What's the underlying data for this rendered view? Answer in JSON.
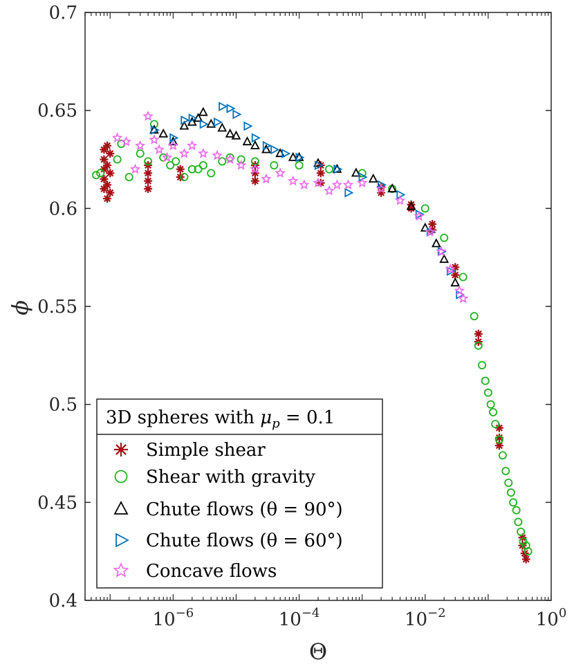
{
  "chart_data": {
    "type": "scatter",
    "xlabel": "Θ",
    "ylabel": "ϕ",
    "x_scale": "log",
    "xlim": [
      4e-08,
      1
    ],
    "ylim": [
      0.4,
      0.7
    ],
    "grid": false,
    "legend_position": "bottom-left",
    "x_ticks": [
      {
        "value": 1e-06,
        "base": "10",
        "exp": "−6"
      },
      {
        "value": 0.0001,
        "base": "10",
        "exp": "−4"
      },
      {
        "value": 0.01,
        "base": "10",
        "exp": "−2"
      },
      {
        "value": 1,
        "base": "10",
        "exp": "0"
      }
    ],
    "y_ticks": [
      "0.4",
      "0.45",
      "0.5",
      "0.55",
      "0.6",
      "0.65",
      "0.7"
    ],
    "legend": {
      "title": "3D spheres with μ_p = 0.1",
      "title_prefix": "3D spheres with ",
      "title_symbol": "μ",
      "title_sub": "p",
      "title_suffix": " = 0.1"
    },
    "series": [
      {
        "name": "Simple shear",
        "marker": "asterisk",
        "color": "#a50f15",
        "points": [
          [
            8e-08,
            0.63
          ],
          [
            8e-08,
            0.625
          ],
          [
            8e-08,
            0.62
          ],
          [
            8e-08,
            0.615
          ],
          [
            8e-08,
            0.61
          ],
          [
            9e-08,
            0.632
          ],
          [
            9e-08,
            0.622
          ],
          [
            9e-08,
            0.612
          ],
          [
            9e-08,
            0.605
          ],
          [
            1e-07,
            0.628
          ],
          [
            1e-07,
            0.618
          ],
          [
            1e-07,
            0.608
          ],
          [
            4e-07,
            0.622
          ],
          [
            4e-07,
            0.618
          ],
          [
            4e-07,
            0.614
          ],
          [
            4e-07,
            0.61
          ],
          [
            1.3e-06,
            0.62
          ],
          [
            1.3e-06,
            0.616
          ],
          [
            2e-05,
            0.622
          ],
          [
            2e-05,
            0.618
          ],
          [
            2e-05,
            0.614
          ],
          [
            0.00022,
            0.622
          ],
          [
            0.00022,
            0.618
          ],
          [
            0.00022,
            0.613
          ],
          [
            0.002,
            0.611
          ],
          [
            0.002,
            0.608
          ],
          [
            0.006,
            0.602
          ],
          [
            0.006,
            0.6
          ],
          [
            0.013,
            0.592
          ],
          [
            0.013,
            0.589
          ],
          [
            0.03,
            0.57
          ],
          [
            0.03,
            0.566
          ],
          [
            0.07,
            0.536
          ],
          [
            0.07,
            0.532
          ],
          [
            0.15,
            0.488
          ],
          [
            0.15,
            0.483
          ],
          [
            0.15,
            0.479
          ],
          [
            0.35,
            0.432
          ],
          [
            0.35,
            0.428
          ],
          [
            0.38,
            0.424
          ],
          [
            0.4,
            0.421
          ]
        ]
      },
      {
        "name": "Shear with gravity",
        "marker": "circle",
        "color": "#1fb31f",
        "points": [
          [
            6e-08,
            0.617
          ],
          [
            7e-08,
            0.618
          ],
          [
            1.3e-07,
            0.625
          ],
          [
            1.5e-07,
            0.633
          ],
          [
            2e-07,
            0.616
          ],
          [
            3e-07,
            0.628
          ],
          [
            4e-07,
            0.624
          ],
          [
            5e-07,
            0.643
          ],
          [
            7e-07,
            0.626
          ],
          [
            9e-07,
            0.622
          ],
          [
            1.1e-06,
            0.624
          ],
          [
            1.5e-06,
            0.616
          ],
          [
            2e-06,
            0.62
          ],
          [
            2.5e-06,
            0.62
          ],
          [
            3e-06,
            0.622
          ],
          [
            4e-06,
            0.618
          ],
          [
            6e-06,
            0.624
          ],
          [
            8e-06,
            0.626
          ],
          [
            1.2e-05,
            0.625
          ],
          [
            2e-05,
            0.624
          ],
          [
            4e-05,
            0.622
          ],
          [
            0.0001,
            0.622
          ],
          [
            0.0003,
            0.62
          ],
          [
            0.001,
            0.618
          ],
          [
            0.003,
            0.61
          ],
          [
            0.01,
            0.6
          ],
          [
            0.02,
            0.585
          ],
          [
            0.04,
            0.565
          ],
          [
            0.06,
            0.545
          ],
          [
            0.07,
            0.53
          ],
          [
            0.08,
            0.52
          ],
          [
            0.09,
            0.512
          ],
          [
            0.1,
            0.506
          ],
          [
            0.11,
            0.5
          ],
          [
            0.12,
            0.496
          ],
          [
            0.13,
            0.49
          ],
          [
            0.15,
            0.482
          ],
          [
            0.17,
            0.474
          ],
          [
            0.19,
            0.466
          ],
          [
            0.21,
            0.46
          ],
          [
            0.23,
            0.455
          ],
          [
            0.25,
            0.45
          ],
          [
            0.28,
            0.446
          ],
          [
            0.3,
            0.44
          ],
          [
            0.33,
            0.435
          ],
          [
            0.36,
            0.43
          ],
          [
            0.4,
            0.428
          ],
          [
            0.43,
            0.425
          ]
        ]
      },
      {
        "name": "Chute flows (θ = 90°)",
        "marker": "triangle-up",
        "color": "#000000",
        "points": [
          [
            5e-07,
            0.64
          ],
          [
            7e-07,
            0.638
          ],
          [
            1e-06,
            0.634
          ],
          [
            1.5e-06,
            0.642
          ],
          [
            2e-06,
            0.644
          ],
          [
            2.5e-06,
            0.646
          ],
          [
            3e-06,
            0.649
          ],
          [
            4e-06,
            0.643
          ],
          [
            6e-06,
            0.641
          ],
          [
            8e-06,
            0.638
          ],
          [
            1e-05,
            0.637
          ],
          [
            1.5e-05,
            0.634
          ],
          [
            2e-05,
            0.632
          ],
          [
            3e-05,
            0.63
          ],
          [
            5e-05,
            0.628
          ],
          [
            8e-05,
            0.626
          ],
          [
            0.0001,
            0.626
          ],
          [
            0.0002,
            0.623
          ],
          [
            0.0004,
            0.62
          ],
          [
            0.0008,
            0.618
          ],
          [
            0.0015,
            0.615
          ],
          [
            0.003,
            0.61
          ],
          [
            0.006,
            0.601
          ],
          [
            0.01,
            0.59
          ],
          [
            0.015,
            0.582
          ],
          [
            0.02,
            0.574
          ],
          [
            0.03,
            0.562
          ]
        ]
      },
      {
        "name": "Chute flows (θ = 60°)",
        "marker": "triangle-right",
        "color": "#0072bd",
        "points": [
          [
            5e-07,
            0.64
          ],
          [
            1e-06,
            0.636
          ],
          [
            1.5e-06,
            0.645
          ],
          [
            2e-06,
            0.646
          ],
          [
            3e-06,
            0.643
          ],
          [
            5e-06,
            0.644
          ],
          [
            6e-06,
            0.652
          ],
          [
            8e-06,
            0.651
          ],
          [
            1e-05,
            0.648
          ],
          [
            1.5e-05,
            0.642
          ],
          [
            2e-05,
            0.636
          ],
          [
            3e-05,
            0.632
          ],
          [
            4e-05,
            0.63
          ],
          [
            6e-05,
            0.628
          ],
          [
            0.0001,
            0.626
          ],
          [
            0.0002,
            0.622
          ],
          [
            0.0004,
            0.62
          ],
          [
            0.0006,
            0.608
          ],
          [
            0.001,
            0.616
          ],
          [
            0.002,
            0.612
          ],
          [
            0.004,
            0.607
          ],
          [
            0.008,
            0.597
          ],
          [
            0.012,
            0.588
          ],
          [
            0.018,
            0.578
          ],
          [
            0.025,
            0.568
          ],
          [
            0.035,
            0.556
          ]
        ]
      },
      {
        "name": "Concave flows",
        "marker": "star",
        "color": "#ee66ee",
        "points": [
          [
            1.3e-07,
            0.636
          ],
          [
            1.8e-07,
            0.634
          ],
          [
            2.5e-07,
            0.62
          ],
          [
            3e-07,
            0.632
          ],
          [
            4e-07,
            0.647
          ],
          [
            5e-07,
            0.635
          ],
          [
            6e-07,
            0.63
          ],
          [
            8e-07,
            0.626
          ],
          [
            1e-06,
            0.632
          ],
          [
            1.5e-06,
            0.628
          ],
          [
            2e-06,
            0.632
          ],
          [
            3e-06,
            0.628
          ],
          [
            5e-06,
            0.627
          ],
          [
            8e-06,
            0.625
          ],
          [
            1.2e-05,
            0.622
          ],
          [
            2e-05,
            0.62
          ],
          [
            3e-05,
            0.615
          ],
          [
            5e-05,
            0.618
          ],
          [
            8e-05,
            0.614
          ],
          [
            0.00012,
            0.612
          ],
          [
            0.0002,
            0.613
          ],
          [
            0.0003,
            0.609
          ],
          [
            0.0004,
            0.612
          ],
          [
            0.0006,
            0.612
          ],
          [
            0.001,
            0.613
          ],
          [
            0.002,
            0.61
          ],
          [
            0.004,
            0.604
          ],
          [
            0.008,
            0.596
          ],
          [
            0.012,
            0.588
          ],
          [
            0.018,
            0.578
          ],
          [
            0.025,
            0.569
          ],
          [
            0.035,
            0.558
          ],
          [
            0.04,
            0.554
          ]
        ]
      }
    ]
  }
}
